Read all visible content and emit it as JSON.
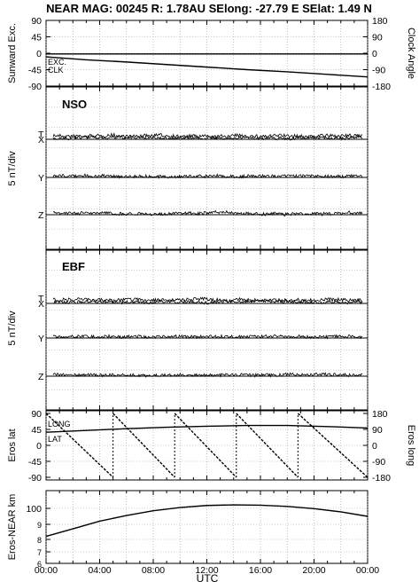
{
  "title": "NEAR MAG: 00245  R: 1.78AU  SElong:  -27.79 E  SElat:    1.49 N",
  "x_axis_label": "UTC",
  "x_tick_labels": [
    "00:00",
    "04:00",
    "08:00",
    "12:00",
    "16:00",
    "20:00",
    "00:00"
  ],
  "chart_data": [
    {
      "type": "line",
      "name": "sunward",
      "ylabel": "Sunward Exc.",
      "y2label": "Clock Angle",
      "ylim": [
        -90,
        90
      ],
      "y2lim": [
        -180,
        180
      ],
      "y_ticks": [
        "90",
        "45",
        "0",
        "-45",
        "-90"
      ],
      "y2_ticks": [
        "180",
        "90",
        "0",
        "-90",
        "-180"
      ],
      "annotations": [
        "EXC.",
        "CLK"
      ],
      "x": [
        0,
        3,
        6,
        9,
        12,
        15,
        18,
        21,
        24
      ],
      "series": [
        {
          "label": "EXC.",
          "values": [
            -10,
            -18,
            -24,
            -31,
            -38,
            -45,
            -51,
            -58,
            -65
          ]
        },
        {
          "label": "CLK",
          "values": [
            -2,
            -2,
            -2,
            -2,
            -2,
            -2,
            -2,
            -2,
            -2
          ]
        }
      ]
    },
    {
      "type": "line",
      "name": "NSO",
      "panel_label": "NSO",
      "ylabel": "5 nT/div",
      "traces": [
        "T",
        "X",
        "Y",
        "Z"
      ]
    },
    {
      "type": "line",
      "name": "EBF",
      "panel_label": "EBF",
      "ylabel": "5 nT/div",
      "traces": [
        "T",
        "X",
        "Y",
        "Z"
      ]
    },
    {
      "type": "line",
      "name": "eros",
      "ylabel": "Eros lat",
      "y2label": "Eros long",
      "ylim": [
        -90,
        90
      ],
      "y2lim": [
        -180,
        180
      ],
      "y_ticks": [
        "90",
        "45",
        "0",
        "-45",
        "-90"
      ],
      "y2_ticks": [
        "180",
        "90",
        "0",
        "-90",
        "-180"
      ],
      "annotations": [
        "LONG",
        "LAT"
      ],
      "lat_x": [
        0,
        3,
        6,
        9,
        12,
        15,
        18,
        21,
        24
      ],
      "lat": [
        37,
        42,
        47,
        51,
        54,
        56,
        56,
        53,
        49
      ],
      "long_x": [
        0,
        5.0,
        5.0,
        9.6,
        9.6,
        14.2,
        14.2,
        18.8,
        18.8,
        24
      ],
      "long": [
        180,
        -180,
        180,
        -180,
        180,
        -180,
        180,
        -180,
        180,
        -180
      ]
    },
    {
      "type": "line",
      "name": "distance",
      "ylabel": "Eros-NEAR km",
      "y_ticks": [
        "100",
        "9",
        "8",
        "7",
        "6"
      ],
      "x": [
        0,
        2,
        4,
        6,
        8,
        10,
        12,
        14,
        16,
        18,
        20,
        22,
        24
      ],
      "values": [
        8.2,
        8.7,
        9.2,
        9.55,
        9.85,
        10.05,
        10.18,
        10.22,
        10.2,
        10.12,
        9.98,
        9.78,
        9.5
      ]
    }
  ]
}
